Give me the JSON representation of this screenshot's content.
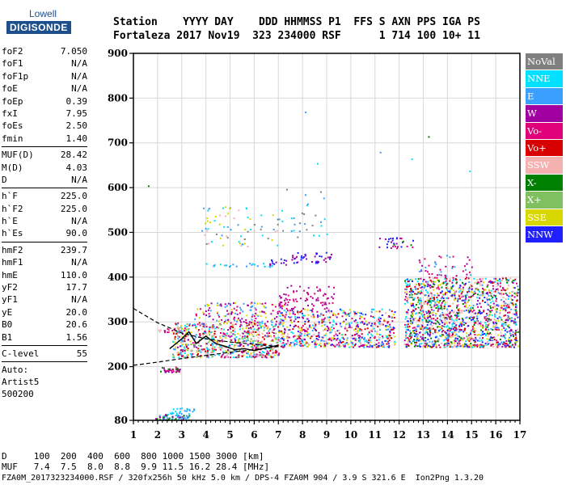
{
  "logo": {
    "top": "Lowell",
    "bottom": "DIGISONDE"
  },
  "header": {
    "line1": "Station    YYYY DAY    DDD HHMMSS P1  FFS S AXN PPS IGA PS",
    "line2": "Fortaleza 2017 Nov19  323 234000 RSF      1 714 100 10+ 11"
  },
  "params": {
    "group1": [
      {
        "name": "foF2",
        "value": "7.050"
      },
      {
        "name": "foF1",
        "value": "N/A"
      },
      {
        "name": "foF1p",
        "value": "N/A"
      },
      {
        "name": "foE",
        "value": "N/A"
      },
      {
        "name": "foEp",
        "value": "0.39"
      },
      {
        "name": "fxI",
        "value": "7.95"
      },
      {
        "name": "foEs",
        "value": "2.50"
      },
      {
        "name": "fmin",
        "value": "1.40"
      }
    ],
    "group2": [
      {
        "name": "MUF(D)",
        "value": "28.42"
      },
      {
        "name": "M(D)",
        "value": "4.03"
      },
      {
        "name": "D",
        "value": "N/A"
      }
    ],
    "group3": [
      {
        "name": "h`F",
        "value": "225.0"
      },
      {
        "name": "h`F2",
        "value": "225.0"
      },
      {
        "name": "h`E",
        "value": "N/A"
      },
      {
        "name": "h`Es",
        "value": "90.0"
      }
    ],
    "group4": [
      {
        "name": "hmF2",
        "value": "239.7"
      },
      {
        "name": "hmF1",
        "value": "N/A"
      },
      {
        "name": "hmE",
        "value": "110.0"
      },
      {
        "name": "yF2",
        "value": "17.7"
      },
      {
        "name": "yF1",
        "value": "N/A"
      },
      {
        "name": "yE",
        "value": "20.0"
      },
      {
        "name": "B0",
        "value": "20.6"
      },
      {
        "name": "B1",
        "value": "1.56"
      }
    ],
    "group5": [
      {
        "name": "C-level",
        "value": "55"
      }
    ],
    "auto": [
      "Auto:",
      "Artist5",
      "500200"
    ]
  },
  "legend": [
    {
      "label": "NoVal",
      "color": "#808080"
    },
    {
      "label": "NNE",
      "color": "#00e0ff"
    },
    {
      "label": "E",
      "color": "#3aa0ff"
    },
    {
      "label": "W",
      "color": "#a000a0"
    },
    {
      "label": "Vo-",
      "color": "#e0007a"
    },
    {
      "label": "Vo+",
      "color": "#d80000"
    },
    {
      "label": "SSW",
      "color": "#f5b0b0"
    },
    {
      "label": "X-",
      "color": "#008000"
    },
    {
      "label": "X+",
      "color": "#80c060"
    },
    {
      "label": "SSE",
      "color": "#d8d800"
    },
    {
      "label": "NNW",
      "color": "#2020ff"
    }
  ],
  "footer": {
    "line1": "D     100  200  400  600  800 1000 1500 3000 [km]",
    "line2": "MUF   7.4  7.5  8.0  8.8  9.9 11.5 16.2 28.4 [MHz]",
    "line3": "FZA0M_2017323234000.RSF / 320fx256h 50 kHz 5.0 km / DPS-4 FZA0M 904 / 3.9 S 321.6 E  Ion2Png 1.3.20"
  },
  "chart_data": {
    "type": "scatter",
    "title": "",
    "xlabel": "",
    "ylabel": "",
    "xlim": [
      1,
      17
    ],
    "ylim": [
      80,
      900
    ],
    "xticks": [
      1,
      2,
      3,
      4,
      5,
      6,
      7,
      8,
      9,
      10,
      11,
      12,
      13,
      14,
      15,
      16,
      17
    ],
    "yticks": [
      80,
      200,
      300,
      400,
      500,
      600,
      700,
      800,
      900
    ],
    "grid": true,
    "trace_line": [
      [
        2.5,
        240
      ],
      [
        3.0,
        262
      ],
      [
        3.3,
        278
      ],
      [
        3.6,
        252
      ],
      [
        4.0,
        268
      ],
      [
        4.4,
        252
      ],
      [
        4.8,
        245
      ],
      [
        5.2,
        238
      ],
      [
        5.6,
        240
      ],
      [
        6.0,
        236
      ],
      [
        6.5,
        242
      ],
      [
        7.0,
        248
      ]
    ],
    "dashed_upper": [
      [
        1.0,
        330
      ],
      [
        2.0,
        298
      ],
      [
        3.0,
        275
      ],
      [
        4.0,
        262
      ],
      [
        5.0,
        255
      ],
      [
        6.0,
        250
      ],
      [
        7.0,
        245
      ]
    ],
    "dashed_lower": [
      [
        1.0,
        203
      ],
      [
        2.0,
        210
      ],
      [
        3.0,
        218
      ],
      [
        4.0,
        225
      ],
      [
        5.0,
        232
      ],
      [
        6.0,
        238
      ],
      [
        7.0,
        245
      ]
    ],
    "clusters": [
      {
        "x": [
          2.1,
          2.9
        ],
        "y": [
          188,
          200
        ],
        "colors": [
          "#008000",
          "#e0007a",
          "#a000a0"
        ],
        "n": 35
      },
      {
        "x": [
          1.9,
          3.3
        ],
        "y": [
          82,
          95
        ],
        "colors": [
          "#00e0ff",
          "#3aa0ff",
          "#a000a0",
          "#008000"
        ],
        "n": 70
      },
      {
        "x": [
          2.5,
          3.5
        ],
        "y": [
          96,
          110
        ],
        "colors": [
          "#00e0ff",
          "#3aa0ff"
        ],
        "n": 25
      },
      {
        "x": [
          2.0,
          2.9
        ],
        "y": [
          278,
          288
        ],
        "colors": [
          "#a000a0",
          "#e0007a",
          "#f5b0b0"
        ],
        "n": 20
      },
      {
        "x": [
          2.6,
          7.0
        ],
        "y": [
          222,
          300
        ],
        "colors": [
          "#f5b0b0",
          "#00e0ff",
          "#d8d800",
          "#3aa0ff",
          "#a000a0",
          "#e0007a",
          "#d80000",
          "#80c060"
        ],
        "n": 700
      },
      {
        "x": [
          3.5,
          7.2
        ],
        "y": [
          300,
          345
        ],
        "colors": [
          "#a000a0",
          "#e0007a",
          "#3aa0ff",
          "#d8d800"
        ],
        "n": 150
      },
      {
        "x": [
          7.0,
          11.8
        ],
        "y": [
          245,
          330
        ],
        "colors": [
          "#f5b0b0",
          "#00e0ff",
          "#3aa0ff",
          "#a000a0",
          "#e0007a",
          "#d80000",
          "#2020ff",
          "#d8d800"
        ],
        "n": 650
      },
      {
        "x": [
          7.0,
          9.3
        ],
        "y": [
          330,
          385
        ],
        "colors": [
          "#a000a0",
          "#e0007a"
        ],
        "n": 80
      },
      {
        "x": [
          7.5,
          9.2
        ],
        "y": [
          432,
          458
        ],
        "colors": [
          "#a000a0",
          "#2020ff"
        ],
        "n": 40
      },
      {
        "x": [
          6.6,
          7.3
        ],
        "y": [
          428,
          442
        ],
        "colors": [
          "#2020ff",
          "#a000a0"
        ],
        "n": 14
      },
      {
        "x": [
          4.0,
          6.8
        ],
        "y": [
          424,
          432
        ],
        "colors": [
          "#3aa0ff",
          "#00e0ff"
        ],
        "n": 24
      },
      {
        "x": [
          3.8,
          7.0
        ],
        "y": [
          470,
          560
        ],
        "colors": [
          "#d8d800",
          "#00e0ff",
          "#3aa0ff",
          "#808080",
          "#f5b0b0"
        ],
        "n": 70
      },
      {
        "x": [
          7.0,
          9.0
        ],
        "y": [
          490,
          600
        ],
        "colors": [
          "#00e0ff",
          "#3aa0ff",
          "#808080"
        ],
        "n": 30
      },
      {
        "x": [
          11.0,
          12.6
        ],
        "y": [
          465,
          490
        ],
        "colors": [
          "#a000a0",
          "#e0007a",
          "#008000",
          "#2020ff"
        ],
        "n": 30
      },
      {
        "x": [
          12.2,
          16.9
        ],
        "y": [
          245,
          400
        ],
        "colors": [
          "#3aa0ff",
          "#00e0ff",
          "#2020ff",
          "#a000a0",
          "#e0007a",
          "#d80000",
          "#f5b0b0",
          "#008000",
          "#d8d800"
        ],
        "n": 1500
      },
      {
        "x": [
          12.8,
          15.0
        ],
        "y": [
          400,
          450
        ],
        "colors": [
          "#a000a0",
          "#3aa0ff",
          "#e0007a"
        ],
        "n": 50
      }
    ],
    "isolated_points": [
      {
        "x": 1.6,
        "y": 605,
        "color": "#008000"
      },
      {
        "x": 13.2,
        "y": 715,
        "color": "#008000"
      },
      {
        "x": 11.2,
        "y": 680,
        "color": "#3aa0ff"
      },
      {
        "x": 12.5,
        "y": 665,
        "color": "#00e0ff"
      },
      {
        "x": 14.9,
        "y": 638,
        "color": "#00e0ff"
      },
      {
        "x": 8.1,
        "y": 770,
        "color": "#3aa0ff"
      },
      {
        "x": 8.6,
        "y": 655,
        "color": "#00e0ff"
      }
    ]
  }
}
